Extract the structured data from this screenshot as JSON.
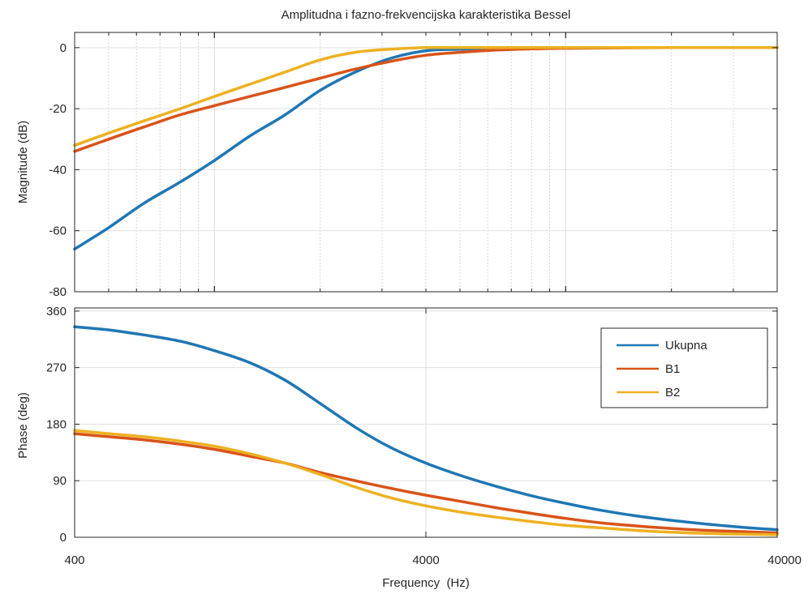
{
  "chart_data": [
    {
      "type": "line",
      "title": "Amplitudna i fazno-frekvencijska karakteristika Bessel",
      "xlabel": "",
      "ylabel": "Magnitude (dB)",
      "xscale": "log",
      "xlim": [
        400,
        40000
      ],
      "ylim": [
        -80,
        5
      ],
      "yticks": [
        0,
        -20,
        -40,
        -60,
        -80
      ],
      "grid": true,
      "series": [
        {
          "name": "Ukupna",
          "color": "#1f77b4",
          "x": [
            400,
            500,
            630,
            800,
            1000,
            1260,
            1590,
            2000,
            2520,
            3170,
            4000,
            5040,
            6350,
            8000,
            10000,
            20000,
            40000
          ],
          "y": [
            -66,
            -59,
            -51,
            -44,
            -37,
            -29,
            -22,
            -14,
            -8,
            -3.5,
            -1,
            -0.5,
            -0.2,
            0,
            0,
            0,
            0
          ]
        },
        {
          "name": "B1",
          "color": "#d95319",
          "x": [
            400,
            500,
            630,
            800,
            1000,
            1260,
            1590,
            2000,
            2520,
            3170,
            4000,
            5040,
            6350,
            8000,
            10000,
            20000,
            40000
          ],
          "y": [
            -34,
            -30,
            -26,
            -22,
            -19,
            -16,
            -13,
            -10,
            -7,
            -4.5,
            -2.5,
            -1.5,
            -0.8,
            -0.4,
            -0.2,
            0,
            0
          ]
        },
        {
          "name": "B2",
          "color": "#edb120",
          "x": [
            400,
            500,
            630,
            800,
            1000,
            1260,
            1590,
            2000,
            2520,
            3170,
            4000,
            5040,
            6350,
            8000,
            10000,
            20000,
            40000
          ],
          "y": [
            -32,
            -28,
            -24,
            -20,
            -16,
            -12,
            -8,
            -4,
            -1.5,
            -0.5,
            0,
            0,
            0,
            0,
            0,
            0,
            0
          ]
        }
      ]
    },
    {
      "type": "line",
      "title": "",
      "xlabel": "Frequency  (Hz)",
      "ylabel": "Phase (deg)",
      "xscale": "log",
      "xlim": [
        400,
        40000
      ],
      "ylim": [
        0,
        365
      ],
      "xticks": [
        400,
        4000,
        40000
      ],
      "xtick_labels": [
        "400",
        "4000",
        "40000"
      ],
      "yticks": [
        0,
        90,
        180,
        270,
        360
      ],
      "grid": true,
      "legend": {
        "position": "top-right",
        "entries": [
          "Ukupna",
          "B1",
          "B2"
        ]
      },
      "series": [
        {
          "name": "Ukupna",
          "color": "#1f77b4",
          "x": [
            400,
            500,
            630,
            800,
            1000,
            1260,
            1590,
            2000,
            2520,
            3170,
            4000,
            5040,
            6350,
            8000,
            10000,
            12600,
            15900,
            20000,
            25200,
            31700,
            40000
          ],
          "y": [
            335,
            330,
            322,
            312,
            297,
            278,
            250,
            213,
            175,
            143,
            118,
            98,
            81,
            66,
            54,
            43,
            34,
            27,
            21,
            16,
            12
          ]
        },
        {
          "name": "B1",
          "color": "#d95319",
          "x": [
            400,
            500,
            630,
            800,
            1000,
            1260,
            1590,
            2000,
            2520,
            3170,
            4000,
            5040,
            6350,
            8000,
            10000,
            12600,
            15900,
            20000,
            25200,
            31700,
            40000
          ],
          "y": [
            165,
            160,
            155,
            148,
            140,
            129,
            118,
            103,
            90,
            78,
            67,
            57,
            47,
            38,
            30,
            23,
            18,
            14,
            11,
            9,
            7
          ]
        },
        {
          "name": "B2",
          "color": "#edb120",
          "x": [
            400,
            500,
            630,
            800,
            1000,
            1260,
            1590,
            2000,
            2520,
            3170,
            4000,
            5040,
            6350,
            8000,
            10000,
            12600,
            15900,
            20000,
            25200,
            31700,
            40000
          ],
          "y": [
            170,
            165,
            160,
            153,
            145,
            133,
            118,
            100,
            80,
            63,
            50,
            40,
            32,
            25,
            19,
            15,
            11,
            8,
            6,
            5,
            4
          ]
        }
      ]
    }
  ]
}
